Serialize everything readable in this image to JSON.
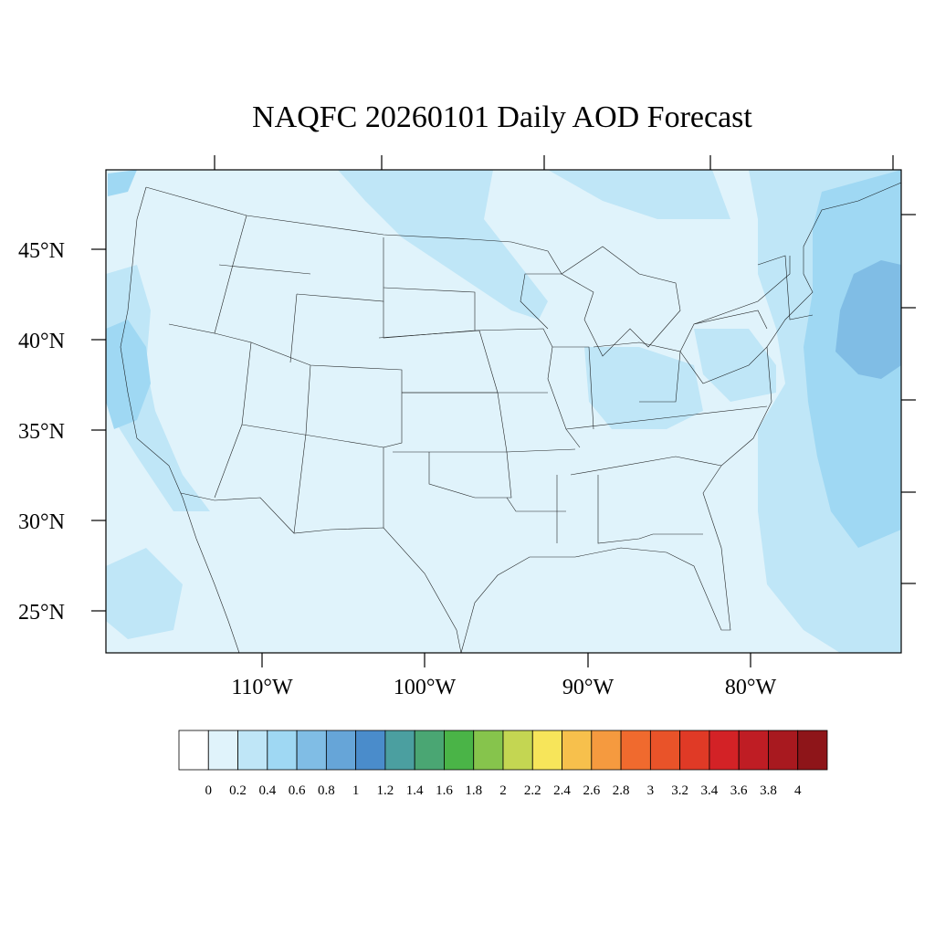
{
  "title": "NAQFC 20260101 Daily AOD Forecast",
  "map": {
    "lat_labels": [
      "45°N",
      "40°N",
      "35°N",
      "30°N",
      "25°N"
    ],
    "lon_labels": [
      "110°W",
      "100°W",
      "90°W",
      "80°W"
    ]
  },
  "colorbar": {
    "labels": [
      "0",
      "0.2",
      "0.4",
      "0.6",
      "0.8",
      "1",
      "1.2",
      "1.4",
      "1.6",
      "1.8",
      "2",
      "2.2",
      "2.4",
      "2.6",
      "2.8",
      "3",
      "3.2",
      "3.4",
      "3.6",
      "3.8",
      "4"
    ],
    "colors": [
      "#ffffff",
      "#e0f3fb",
      "#bfe6f7",
      "#9fd8f3",
      "#80bde5",
      "#66a5d8",
      "#4a8ccb",
      "#4b9fa0",
      "#4aa673",
      "#4ab447",
      "#86c44c",
      "#c4d652",
      "#f7e55a",
      "#f7c04c",
      "#f59a3f",
      "#f06a2e",
      "#e95329",
      "#e03a26",
      "#d32226",
      "#bf1d24",
      "#a8191f",
      "#8e1519"
    ]
  }
}
